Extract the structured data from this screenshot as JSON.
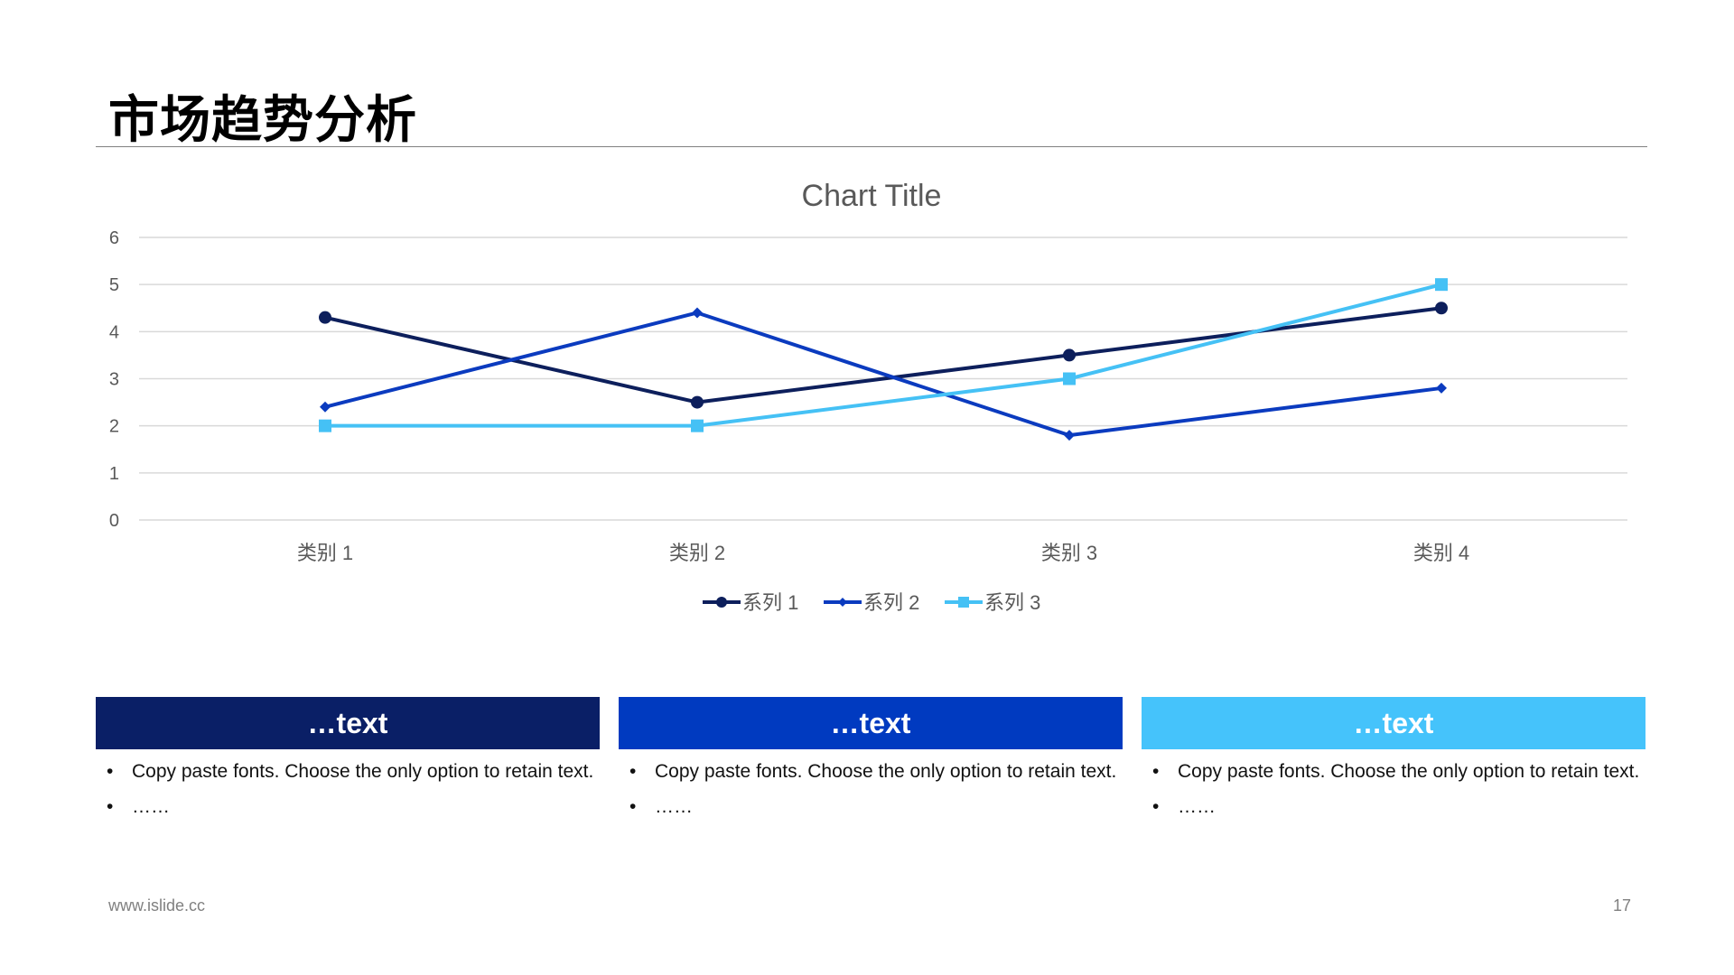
{
  "page": {
    "title": "市场趋势分析",
    "footer_url": "www.islide.cc",
    "page_number": "17"
  },
  "chart_data": {
    "type": "line",
    "title": "Chart Title",
    "categories": [
      "类别 1",
      "类别 2",
      "类别 3",
      "类别 4"
    ],
    "series": [
      {
        "name": "系列 1",
        "values": [
          4.3,
          2.5,
          3.5,
          4.5
        ],
        "color": "#0d1f5c",
        "marker": "circle"
      },
      {
        "name": "系列 2",
        "values": [
          2.4,
          4.4,
          1.8,
          2.8
        ],
        "color": "#0b3bbf",
        "marker": "diamond"
      },
      {
        "name": "系列 3",
        "values": [
          2,
          2,
          3,
          5
        ],
        "color": "#45c1f5",
        "marker": "square"
      }
    ],
    "ylim": [
      0,
      6
    ],
    "yticks": [
      0,
      1,
      2,
      3,
      4,
      5,
      6
    ],
    "grid": true,
    "legend": "bottom"
  },
  "cards": [
    {
      "header": "…text",
      "color": "#0a1f66",
      "items": [
        "Copy paste fonts. Choose the only option to retain text.",
        "……"
      ]
    },
    {
      "header": "…text",
      "color": "#003ac0",
      "items": [
        "Copy paste fonts. Choose the only option to retain text.",
        "……"
      ]
    },
    {
      "header": "…text",
      "color": "#45c3fb",
      "items": [
        "Copy paste fonts. Choose the only option to retain text.",
        "……"
      ]
    }
  ]
}
